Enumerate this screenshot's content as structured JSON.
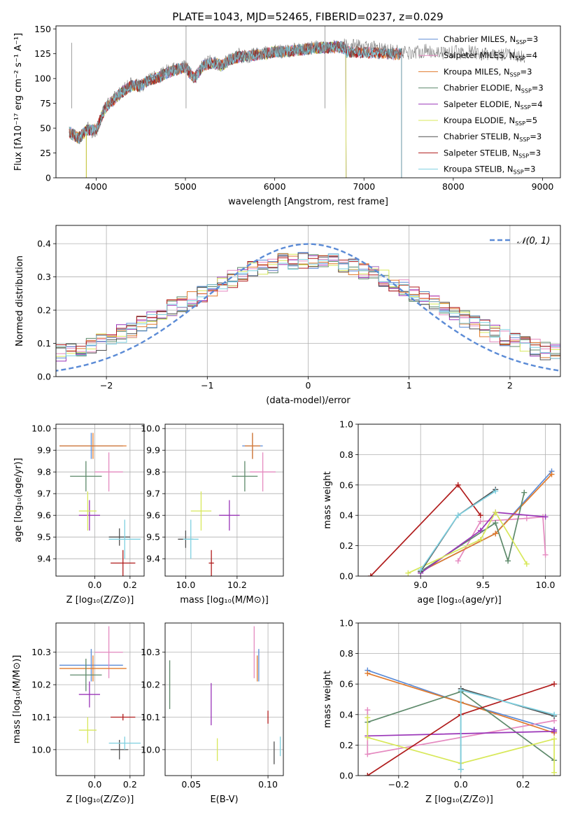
{
  "figure_title": "PLATE=1043, MJD=52465, FIBERID=0237, z=0.029",
  "models": [
    {
      "name": "Chabrier MILES",
      "n": "3",
      "color": "#5b8bd6"
    },
    {
      "name": "Salpeter MILES",
      "n": "4",
      "color": "#e58ac0"
    },
    {
      "name": "Kroupa MILES",
      "n": "3",
      "color": "#e07a2c"
    },
    {
      "name": "Chabrier ELODIE",
      "n": "3",
      "color": "#5e8a6b"
    },
    {
      "name": "Salpeter ELODIE",
      "n": "4",
      "color": "#9a35b8"
    },
    {
      "name": "Kroupa ELODIE",
      "n": "5",
      "color": "#d8e85a"
    },
    {
      "name": "Chabrier STELIB",
      "n": "3",
      "color": "#505050"
    },
    {
      "name": "Salpeter STELIB",
      "n": "3",
      "color": "#b01c1c"
    },
    {
      "name": "Kroupa STELIB",
      "n": "3",
      "color": "#7ed0e0"
    }
  ],
  "nssp_prefix": "N",
  "nssp_sub": "SSP",
  "chart_data": [
    {
      "type": "line",
      "id": "spectrum",
      "title": "PLATE=1043, MJD=52465, FIBERID=0237, z=0.029",
      "xlabel": "wavelength [Angstrom, rest frame]",
      "ylabel": "Flux [fλ10⁻¹⁷ erg cm⁻² s⁻¹ A⁻¹]",
      "xlim": [
        3550,
        9200
      ],
      "ylim": [
        0,
        153
      ],
      "xticks": [
        4000,
        5000,
        6000,
        7000,
        8000,
        9000
      ],
      "yticks": [
        0,
        25,
        50,
        75,
        100,
        125,
        150
      ],
      "data_gray_x": [
        3700,
        3800,
        3900,
        4000,
        4100,
        4200,
        4300,
        4400,
        4500,
        4600,
        4700,
        4800,
        4900,
        5000,
        5100,
        5200,
        5300,
        5400,
        5500,
        5600,
        5700,
        5800,
        5900,
        6000,
        6100,
        6200,
        6300,
        6400,
        6500,
        6600,
        6700,
        6800,
        6900,
        7000,
        7100,
        7200,
        7300,
        7400,
        7500,
        7600,
        7700,
        7800,
        7900,
        8000,
        8100,
        8200,
        8300,
        8400,
        8500,
        8600,
        8700,
        8800
      ],
      "data_gray_y": [
        48,
        38,
        50,
        45,
        72,
        80,
        88,
        95,
        92,
        100,
        102,
        108,
        110,
        113,
        98,
        115,
        118,
        112,
        120,
        124,
        122,
        125,
        126,
        128,
        127,
        129,
        130,
        131,
        132,
        132,
        133,
        134,
        133,
        132,
        131,
        129,
        128,
        127,
        126,
        127,
        128,
        127,
        126,
        127,
        126,
        127,
        125,
        124,
        123,
        124,
        123,
        122
      ],
      "model_x": [
        3700,
        3800,
        3900,
        4000,
        4100,
        4200,
        4300,
        4400,
        4500,
        4600,
        4700,
        4800,
        4900,
        5000,
        5100,
        5200,
        5300,
        5400,
        5500,
        5600,
        5700,
        5800,
        5900,
        6000,
        6100,
        6200,
        6300,
        6400,
        6500,
        6600,
        6700,
        6800
      ],
      "model_y": [
        46,
        40,
        48,
        48,
        70,
        79,
        87,
        93,
        93,
        99,
        101,
        106,
        109,
        111,
        100,
        113,
        116,
        113,
        119,
        122,
        122,
        124,
        125,
        127,
        127,
        128,
        129,
        130,
        131,
        131,
        132,
        130
      ],
      "model_ends": {
        "ELODIE": 6800,
        "MILES": 7420,
        "STELIB": 7420
      }
    },
    {
      "type": "line",
      "id": "residual-histogram",
      "xlabel": "(data-model)/error",
      "ylabel": "Normed distribution",
      "xlim": [
        -2.5,
        2.5
      ],
      "ylim": [
        0,
        0.455
      ],
      "xticks": [
        -2,
        -1,
        0,
        1,
        2
      ],
      "yticks": [
        0.0,
        0.1,
        0.2,
        0.3,
        0.4
      ],
      "legend": "𝒩(0, 1)",
      "normal_curve_color": "#5b8bd6"
    },
    {
      "type": "scatter",
      "id": "age-vs-Z",
      "xlabel": "Z [log₁₀(Z/Z⊙)]",
      "ylabel": "age  [log₁₀(age/yr)]",
      "xlim": [
        -0.22,
        0.28
      ],
      "ylim": [
        9.32,
        10.02
      ],
      "xticks": [
        0.0,
        0.2
      ],
      "yticks": [
        9.4,
        9.5,
        9.6,
        9.7,
        9.8,
        9.9,
        10.0
      ],
      "points": [
        {
          "model": 0,
          "x": -0.02,
          "y": 9.92,
          "xerr": 0.18,
          "yerr": 0.06
        },
        {
          "model": 1,
          "x": 0.08,
          "y": 9.8,
          "xerr": 0.08,
          "yerr": 0.09
        },
        {
          "model": 2,
          "x": -0.01,
          "y": 9.92,
          "xerr": 0.19,
          "yerr": 0.06
        },
        {
          "model": 3,
          "x": -0.05,
          "y": 9.78,
          "xerr": 0.09,
          "yerr": 0.07
        },
        {
          "model": 4,
          "x": -0.03,
          "y": 9.6,
          "xerr": 0.06,
          "yerr": 0.07
        },
        {
          "model": 5,
          "x": -0.04,
          "y": 9.62,
          "xerr": 0.05,
          "yerr": 0.09
        },
        {
          "model": 6,
          "x": 0.14,
          "y": 9.5,
          "xerr": 0.06,
          "yerr": 0.04
        },
        {
          "model": 7,
          "x": 0.16,
          "y": 9.38,
          "xerr": 0.07,
          "yerr": 0.06
        },
        {
          "model": 8,
          "x": 0.17,
          "y": 9.49,
          "xerr": 0.09,
          "yerr": 0.09
        }
      ]
    },
    {
      "type": "scatter",
      "id": "age-vs-mass",
      "xlabel": "mass [log₁₀(M/M⊙)]",
      "xlim": [
        9.92,
        10.38
      ],
      "ylim": [
        9.32,
        10.02
      ],
      "xticks": [
        10.0,
        10.2
      ],
      "yticks": [
        9.4,
        9.5,
        9.6,
        9.7,
        9.8,
        9.9,
        10.0
      ],
      "points": [
        {
          "model": 0,
          "x": 10.26,
          "y": 9.92,
          "xerr": 0.04,
          "yerr": 0.06
        },
        {
          "model": 1,
          "x": 10.3,
          "y": 9.8,
          "xerr": 0.05,
          "yerr": 0.09
        },
        {
          "model": 2,
          "x": 10.26,
          "y": 9.92,
          "xerr": 0.03,
          "yerr": 0.06
        },
        {
          "model": 3,
          "x": 10.23,
          "y": 9.78,
          "xerr": 0.05,
          "yerr": 0.07
        },
        {
          "model": 4,
          "x": 10.17,
          "y": 9.6,
          "xerr": 0.04,
          "yerr": 0.07
        },
        {
          "model": 5,
          "x": 10.06,
          "y": 9.62,
          "xerr": 0.04,
          "yerr": 0.09
        },
        {
          "model": 6,
          "x": 10.0,
          "y": 9.49,
          "xerr": 0.03,
          "yerr": 0.04
        },
        {
          "model": 7,
          "x": 10.1,
          "y": 9.38,
          "xerr": 0.01,
          "yerr": 0.06
        },
        {
          "model": 8,
          "x": 10.02,
          "y": 9.49,
          "xerr": 0.03,
          "yerr": 0.09
        }
      ]
    },
    {
      "type": "line",
      "id": "mass-weight-vs-age",
      "xlabel": "age  [log₁₀(age/yr)]",
      "ylabel": "mass weight",
      "xlim": [
        8.5,
        10.12
      ],
      "ylim": [
        0,
        1.0
      ],
      "xticks": [
        9.0,
        9.5,
        10.0
      ],
      "yticks": [
        0.0,
        0.2,
        0.4,
        0.6,
        0.8,
        1.0
      ],
      "series": [
        {
          "model": 0,
          "x": [
            9.0,
            9.6,
            10.05
          ],
          "y": [
            0.03,
            0.28,
            0.69
          ]
        },
        {
          "model": 1,
          "x": [
            9.3,
            9.48,
            9.85,
            9.98,
            10.0
          ],
          "y": [
            0.1,
            0.36,
            0.38,
            0.39,
            0.14
          ]
        },
        {
          "model": 2,
          "x": [
            9.0,
            9.6,
            10.05
          ],
          "y": [
            0.03,
            0.28,
            0.67
          ]
        },
        {
          "model": 3,
          "x": [
            9.0,
            9.6,
            9.7,
            9.83
          ],
          "y": [
            0.03,
            0.35,
            0.1,
            0.55
          ]
        },
        {
          "model": 4,
          "x": [
            9.0,
            9.48,
            9.6,
            10.0
          ],
          "y": [
            0.02,
            0.3,
            0.42,
            0.39
          ]
        },
        {
          "model": 5,
          "x": [
            8.9,
            9.48,
            9.6,
            9.85
          ],
          "y": [
            0.02,
            0.24,
            0.42,
            0.08
          ]
        },
        {
          "model": 6,
          "x": [
            9.0,
            9.3,
            9.6
          ],
          "y": [
            0.03,
            0.4,
            0.57
          ]
        },
        {
          "model": 7,
          "x": [
            8.6,
            9.3,
            9.48
          ],
          "y": [
            0.0,
            0.6,
            0.4
          ]
        },
        {
          "model": 8,
          "x": [
            9.0,
            9.3,
            9.6
          ],
          "y": [
            0.04,
            0.4,
            0.56
          ]
        }
      ]
    },
    {
      "type": "scatter",
      "id": "mass-vs-Z",
      "xlabel": "Z [log₁₀(Z/Z⊙)]",
      "ylabel": "mass [log₁₀(M/M⊙)]",
      "xlim": [
        -0.22,
        0.28
      ],
      "ylim": [
        9.92,
        10.39
      ],
      "xticks": [
        0.0,
        0.2
      ],
      "yticks": [
        10.0,
        10.1,
        10.2,
        10.3
      ],
      "points": [
        {
          "model": 0,
          "x": -0.02,
          "y": 10.26,
          "xerr": 0.18,
          "yerr": 0.05
        },
        {
          "model": 1,
          "x": 0.08,
          "y": 10.3,
          "xerr": 0.08,
          "yerr": 0.08
        },
        {
          "model": 2,
          "x": -0.01,
          "y": 10.25,
          "xerr": 0.19,
          "yerr": 0.04
        },
        {
          "model": 3,
          "x": -0.05,
          "y": 10.23,
          "xerr": 0.09,
          "yerr": 0.05
        },
        {
          "model": 4,
          "x": -0.03,
          "y": 10.17,
          "xerr": 0.06,
          "yerr": 0.04
        },
        {
          "model": 5,
          "x": -0.04,
          "y": 10.06,
          "xerr": 0.05,
          "yerr": 0.04
        },
        {
          "model": 6,
          "x": 0.14,
          "y": 10.0,
          "xerr": 0.05,
          "yerr": 0.03
        },
        {
          "model": 7,
          "x": 0.16,
          "y": 10.1,
          "xerr": 0.07,
          "yerr": 0.01
        },
        {
          "model": 8,
          "x": 0.17,
          "y": 10.02,
          "xerr": 0.09,
          "yerr": 0.02
        }
      ]
    },
    {
      "type": "scatter",
      "id": "mass-vs-ebv",
      "xlabel": "E(B-V)",
      "xlim": [
        0.033,
        0.11
      ],
      "ylim": [
        9.92,
        10.39
      ],
      "xticks": [
        0.05,
        0.1
      ],
      "yticks": [
        10.0,
        10.1,
        10.2,
        10.3
      ],
      "points": [
        {
          "model": 0,
          "x": 0.094,
          "y": 10.26,
          "yerr": 0.05
        },
        {
          "model": 1,
          "x": 0.091,
          "y": 10.3,
          "yerr": 0.08
        },
        {
          "model": 2,
          "x": 0.093,
          "y": 10.25,
          "yerr": 0.04
        },
        {
          "model": 3,
          "x": 0.036,
          "y": 10.2,
          "yerr": 0.075
        },
        {
          "model": 4,
          "x": 0.063,
          "y": 10.14,
          "yerr": 0.065
        },
        {
          "model": 5,
          "x": 0.067,
          "y": 10.0,
          "yerr": 0.035
        },
        {
          "model": 6,
          "x": 0.104,
          "y": 9.99,
          "yerr": 0.035
        },
        {
          "model": 7,
          "x": 0.1,
          "y": 10.1,
          "yerr": 0.02
        },
        {
          "model": 8,
          "x": 0.108,
          "y": 10.01,
          "yerr": 0.03
        }
      ]
    },
    {
      "type": "line",
      "id": "mass-weight-vs-Z",
      "xlabel": "Z [log₁₀(Z/Z⊙)]",
      "ylabel": "mass weight",
      "xlim": [
        -0.33,
        0.32
      ],
      "ylim": [
        0,
        1.0
      ],
      "xticks": [
        -0.2,
        0.0,
        0.2
      ],
      "yticks": [
        0.0,
        0.2,
        0.4,
        0.6,
        0.8,
        1.0
      ],
      "series": [
        {
          "model": 0,
          "x": [
            -0.3,
            0.0,
            0.3
          ],
          "y": [
            0.69,
            0.48,
            0.3
          ]
        },
        {
          "model": 1,
          "x": [
            -0.3,
            -0.3,
            0.3
          ],
          "y": [
            0.43,
            0.14,
            0.36
          ]
        },
        {
          "model": 2,
          "x": [
            -0.3,
            0.0,
            0.3
          ],
          "y": [
            0.67,
            0.48,
            0.28
          ]
        },
        {
          "model": 3,
          "x": [
            -0.3,
            0.0,
            0.3
          ],
          "y": [
            0.35,
            0.55,
            0.1
          ]
        },
        {
          "model": 4,
          "x": [
            -0.3,
            0.3,
            0.3
          ],
          "y": [
            0.26,
            0.29,
            0.3
          ]
        },
        {
          "model": 5,
          "x": [
            -0.3,
            -0.3,
            0.0,
            0.3,
            0.3
          ],
          "y": [
            0.38,
            0.25,
            0.08,
            0.24,
            0.02
          ]
        },
        {
          "model": 6,
          "x": [
            0.0,
            0.0,
            0.3
          ],
          "y": [
            0.04,
            0.57,
            0.39
          ]
        },
        {
          "model": 7,
          "x": [
            -0.3,
            0.0,
            0.3
          ],
          "y": [
            0.0,
            0.4,
            0.6
          ]
        },
        {
          "model": 8,
          "x": [
            0.0,
            0.0,
            0.3
          ],
          "y": [
            0.04,
            0.56,
            0.4
          ]
        }
      ]
    }
  ]
}
